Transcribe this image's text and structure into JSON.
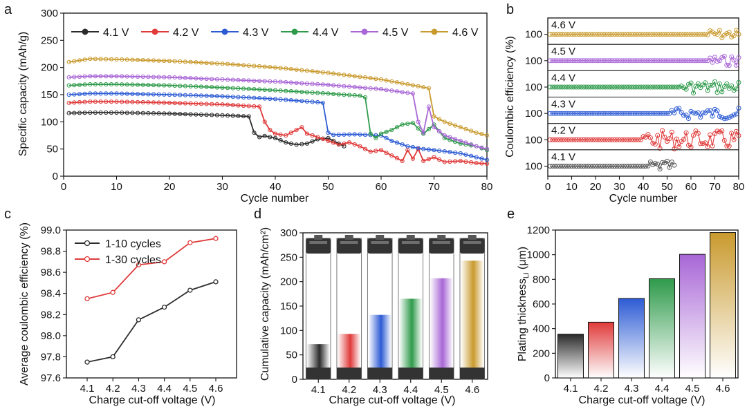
{
  "panel_labels": {
    "a": "a",
    "b": "b",
    "c": "c",
    "d": "d",
    "e": "e"
  },
  "chart_data": [
    {
      "id": "a",
      "type": "line",
      "xlabel": "Cycle number",
      "ylabel": "Specific capacity (mAh/g)",
      "xlim": [
        0,
        80
      ],
      "ylim": [
        0,
        300
      ],
      "xticks": [
        0,
        10,
        20,
        30,
        40,
        50,
        60,
        70,
        80
      ],
      "yticks": [
        0,
        50,
        100,
        150,
        200,
        250,
        300
      ],
      "legend_position": "top",
      "series": [
        {
          "name": "4.1 V",
          "color": "#2b2b2b",
          "points": [
            [
              1,
              116
            ],
            [
              5,
              117
            ],
            [
              10,
              117
            ],
            [
              20,
              115
            ],
            [
              30,
              112
            ],
            [
              35,
              110
            ],
            [
              36,
              80
            ],
            [
              37,
              72
            ],
            [
              38,
              74
            ],
            [
              40,
              70
            ],
            [
              42,
              62
            ],
            [
              44,
              58
            ],
            [
              46,
              60
            ],
            [
              48,
              68
            ],
            [
              50,
              70
            ],
            [
              52,
              60
            ],
            [
              53,
              55
            ]
          ]
        },
        {
          "name": "4.2 V",
          "color": "#e03a3a",
          "points": [
            [
              1,
              135
            ],
            [
              5,
              137
            ],
            [
              10,
              137
            ],
            [
              20,
              135
            ],
            [
              30,
              132
            ],
            [
              37,
              128
            ],
            [
              38,
              100
            ],
            [
              39,
              85
            ],
            [
              40,
              78
            ],
            [
              42,
              75
            ],
            [
              44,
              85
            ],
            [
              45,
              90
            ],
            [
              46,
              78
            ],
            [
              48,
              72
            ],
            [
              50,
              65
            ],
            [
              52,
              58
            ],
            [
              54,
              62
            ],
            [
              56,
              55
            ],
            [
              58,
              45
            ],
            [
              60,
              48
            ],
            [
              62,
              38
            ],
            [
              64,
              28
            ],
            [
              65,
              48
            ],
            [
              66,
              32
            ],
            [
              67,
              50
            ],
            [
              68,
              28
            ],
            [
              70,
              35
            ],
            [
              72,
              26
            ],
            [
              75,
              28
            ],
            [
              78,
              24
            ],
            [
              80,
              23
            ]
          ]
        },
        {
          "name": "4.3 V",
          "color": "#2d5bd4",
          "points": [
            [
              1,
              150
            ],
            [
              5,
              152
            ],
            [
              10,
              152
            ],
            [
              20,
              150
            ],
            [
              30,
              147
            ],
            [
              40,
              142
            ],
            [
              48,
              136
            ],
            [
              49,
              135
            ],
            [
              50,
              80
            ],
            [
              51,
              76
            ],
            [
              55,
              77
            ],
            [
              60,
              75
            ],
            [
              62,
              65
            ],
            [
              65,
              55
            ],
            [
              68,
              50
            ],
            [
              70,
              48
            ],
            [
              75,
              42
            ],
            [
              80,
              30
            ]
          ]
        },
        {
          "name": "4.4 V",
          "color": "#2e9a4a",
          "points": [
            [
              1,
              167
            ],
            [
              5,
              169
            ],
            [
              10,
              169
            ],
            [
              20,
              167
            ],
            [
              30,
              163
            ],
            [
              40,
              158
            ],
            [
              50,
              152
            ],
            [
              56,
              148
            ],
            [
              57,
              145
            ],
            [
              58,
              78
            ],
            [
              59,
              70
            ],
            [
              60,
              78
            ],
            [
              62,
              85
            ],
            [
              64,
              95
            ],
            [
              66,
              98
            ],
            [
              68,
              78
            ],
            [
              70,
              95
            ],
            [
              72,
              70
            ],
            [
              75,
              60
            ],
            [
              78,
              55
            ],
            [
              80,
              48
            ]
          ]
        },
        {
          "name": "4.5 V",
          "color": "#a866d6",
          "points": [
            [
              1,
              182
            ],
            [
              5,
              184
            ],
            [
              10,
              184
            ],
            [
              20,
              182
            ],
            [
              30,
              178
            ],
            [
              40,
              174
            ],
            [
              50,
              168
            ],
            [
              60,
              160
            ],
            [
              66,
              152
            ],
            [
              67,
              100
            ],
            [
              68,
              80
            ],
            [
              69,
              128
            ],
            [
              70,
              90
            ],
            [
              72,
              75
            ],
            [
              75,
              65
            ],
            [
              78,
              55
            ],
            [
              80,
              50
            ]
          ]
        },
        {
          "name": "4.6 V",
          "color": "#c99a2e",
          "points": [
            [
              1,
              210
            ],
            [
              5,
              216
            ],
            [
              10,
              215
            ],
            [
              20,
              212
            ],
            [
              30,
              207
            ],
            [
              40,
              200
            ],
            [
              50,
              190
            ],
            [
              60,
              178
            ],
            [
              69,
              162
            ],
            [
              70,
              110
            ],
            [
              72,
              100
            ],
            [
              75,
              90
            ],
            [
              78,
              80
            ],
            [
              80,
              75
            ]
          ]
        }
      ]
    },
    {
      "id": "b",
      "type": "scatter",
      "xlabel": "Cycle number",
      "ylabel": "Coulombic efficiency (%)",
      "xlim": [
        0,
        80
      ],
      "xticks": [
        0,
        10,
        20,
        30,
        40,
        50,
        60,
        70,
        80
      ],
      "ytick_label": "100",
      "rows": [
        {
          "name": "4.6 V",
          "color": "#c99a2e",
          "last_cycle": 80,
          "noise_from": 66,
          "amp": 1.5
        },
        {
          "name": "4.5 V",
          "color": "#a866d6",
          "last_cycle": 80,
          "noise_from": 68,
          "amp": 1.6
        },
        {
          "name": "4.4 V",
          "color": "#2e9a4a",
          "last_cycle": 80,
          "noise_from": 56,
          "amp": 2.0
        },
        {
          "name": "4.3 V",
          "color": "#2d5bd4",
          "last_cycle": 80,
          "noise_from": 52,
          "amp": 1.8
        },
        {
          "name": "4.2 V",
          "color": "#e03a3a",
          "last_cycle": 80,
          "noise_from": 40,
          "amp": 3.0
        },
        {
          "name": "4.1 V",
          "color": "#555555",
          "last_cycle": 53,
          "noise_from": 42,
          "amp": 1.6
        }
      ]
    },
    {
      "id": "c",
      "type": "line",
      "xlabel": "Charge cut-off voltage (V)",
      "ylabel": "Average coulombic efficiency (%)",
      "categories": [
        "4.1",
        "4.2",
        "4.3",
        "4.4",
        "4.5",
        "4.6"
      ],
      "ylim": [
        97.6,
        99.0
      ],
      "yticks": [
        "97.6",
        "97.8",
        "98.0",
        "98.2",
        "98.4",
        "98.6",
        "98.8",
        "99.0"
      ],
      "legend_position": "top-left",
      "series": [
        {
          "name": "1-10 cycles",
          "color": "#2b2b2b",
          "values": [
            97.75,
            97.8,
            98.15,
            98.27,
            98.43,
            98.51
          ]
        },
        {
          "name": "1-30 cycles",
          "color": "#e03a3a",
          "values": [
            98.35,
            98.41,
            98.67,
            98.7,
            98.88,
            98.92
          ]
        }
      ]
    },
    {
      "id": "d",
      "type": "bar",
      "xlabel": "Charge cut-off voltage (V)",
      "ylabel": "Cumulative capacity (mAh/cm²)",
      "categories": [
        "4.1",
        "4.2",
        "4.3",
        "4.4",
        "4.5",
        "4.6"
      ],
      "values": [
        72,
        93,
        132,
        165,
        207,
        243
      ],
      "colors": [
        "#2b2b2b",
        "#e03a3a",
        "#2d5bd4",
        "#2e9a4a",
        "#a866d6",
        "#c99a2e"
      ],
      "ylim": [
        0,
        300
      ],
      "yticks": [
        0,
        50,
        100,
        150,
        200,
        250,
        300
      ]
    },
    {
      "id": "e",
      "type": "bar",
      "xlabel": "Charge cut-off voltage (V)",
      "ylabel_main": "Plating thickness",
      "ylabel_sub": "Li",
      "ylabel_unit": " (μm)",
      "categories": [
        "4.1",
        "4.2",
        "4.3",
        "4.4",
        "4.5",
        "4.6"
      ],
      "values": [
        355,
        452,
        645,
        805,
        1003,
        1180
      ],
      "colors": [
        "#2b2b2b",
        "#e03a3a",
        "#2d5bd4",
        "#2e9a4a",
        "#a866d6",
        "#c99a2e"
      ],
      "ylim": [
        0,
        1200
      ],
      "yticks": [
        0,
        200,
        400,
        600,
        800,
        1000,
        1200
      ]
    }
  ]
}
